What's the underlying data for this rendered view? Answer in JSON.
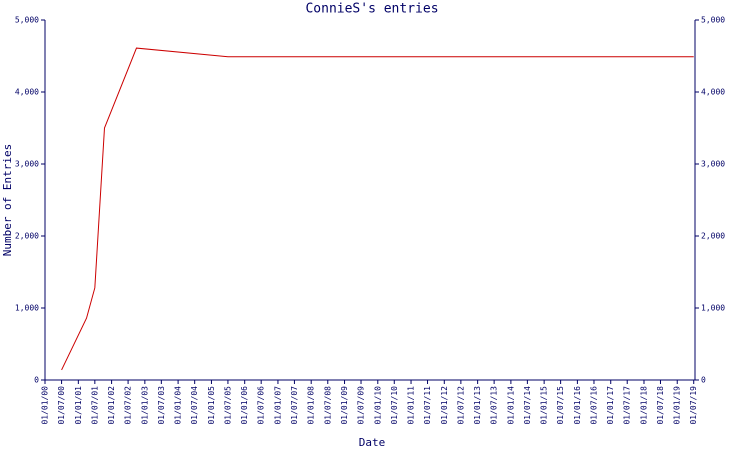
{
  "chart_data": {
    "type": "line",
    "title": "ConnieS's entries",
    "x_label": "Date",
    "y_label": "Number of Entries",
    "x": [
      "2000-07-01",
      "2001-04-01",
      "2001-07-01",
      "2001-10-15",
      "2002-10-01",
      "2005-07-01",
      "2011-01-01",
      "2019-07-01"
    ],
    "series": [
      {
        "name": "entries",
        "color": "#cc0000",
        "values": [
          140,
          860,
          1280,
          3500,
          4610,
          4490,
          4490,
          4490
        ]
      }
    ],
    "xlim": [
      "2000-01-01",
      "2019-07-15"
    ],
    "xticks": [
      {
        "value": "2000-01-01",
        "label": "01/01/00"
      },
      {
        "value": "2000-07-01",
        "label": "01/07/00"
      },
      {
        "value": "2001-01-01",
        "label": "01/01/01"
      },
      {
        "value": "2001-07-01",
        "label": "01/07/01"
      },
      {
        "value": "2002-01-01",
        "label": "01/01/02"
      },
      {
        "value": "2002-07-01",
        "label": "01/07/02"
      },
      {
        "value": "2003-01-01",
        "label": "01/01/03"
      },
      {
        "value": "2003-07-01",
        "label": "01/07/03"
      },
      {
        "value": "2004-01-01",
        "label": "01/01/04"
      },
      {
        "value": "2004-07-01",
        "label": "01/07/04"
      },
      {
        "value": "2005-01-01",
        "label": "01/01/05"
      },
      {
        "value": "2005-07-01",
        "label": "01/07/05"
      },
      {
        "value": "2006-01-01",
        "label": "01/01/06"
      },
      {
        "value": "2006-07-01",
        "label": "01/07/06"
      },
      {
        "value": "2007-01-01",
        "label": "01/01/07"
      },
      {
        "value": "2007-07-01",
        "label": "01/07/07"
      },
      {
        "value": "2008-01-01",
        "label": "01/01/08"
      },
      {
        "value": "2008-07-01",
        "label": "01/07/08"
      },
      {
        "value": "2009-01-01",
        "label": "01/01/09"
      },
      {
        "value": "2009-07-01",
        "label": "01/07/09"
      },
      {
        "value": "2010-01-01",
        "label": "01/01/10"
      },
      {
        "value": "2010-07-01",
        "label": "01/07/10"
      },
      {
        "value": "2011-01-01",
        "label": "01/01/11"
      },
      {
        "value": "2011-07-01",
        "label": "01/07/11"
      },
      {
        "value": "2012-01-01",
        "label": "01/01/12"
      },
      {
        "value": "2012-07-01",
        "label": "01/07/12"
      },
      {
        "value": "2013-01-01",
        "label": "01/01/13"
      },
      {
        "value": "2013-07-01",
        "label": "01/07/13"
      },
      {
        "value": "2014-01-01",
        "label": "01/01/14"
      },
      {
        "value": "2014-07-01",
        "label": "01/07/14"
      },
      {
        "value": "2015-01-01",
        "label": "01/01/15"
      },
      {
        "value": "2015-07-01",
        "label": "01/07/15"
      },
      {
        "value": "2016-01-01",
        "label": "01/01/16"
      },
      {
        "value": "2016-07-01",
        "label": "01/07/16"
      },
      {
        "value": "2017-01-01",
        "label": "01/01/17"
      },
      {
        "value": "2017-07-01",
        "label": "01/07/17"
      },
      {
        "value": "2018-01-01",
        "label": "01/01/18"
      },
      {
        "value": "2018-07-01",
        "label": "01/07/18"
      },
      {
        "value": "2019-01-01",
        "label": "01/01/19"
      },
      {
        "value": "2019-07-01",
        "label": "01/07/19"
      }
    ],
    "ylim": [
      0,
      5000
    ],
    "yticks": [
      0,
      {
        "value": 1000,
        "label": "1,000"
      },
      {
        "value": 2000,
        "label": "2,000"
      },
      {
        "value": 3000,
        "label": "3,000"
      },
      {
        "value": 4000,
        "label": "4,000"
      },
      {
        "value": 5000,
        "label": "5,000"
      }
    ],
    "text_color": "#000066"
  }
}
